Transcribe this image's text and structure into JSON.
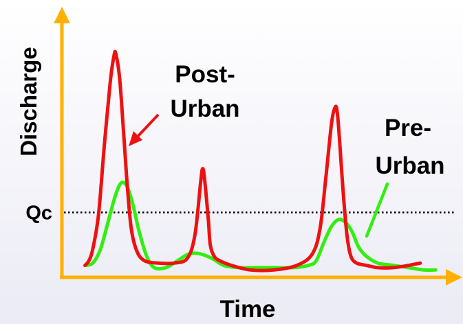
{
  "chart_data": {
    "type": "line",
    "title": "",
    "xlabel": "Time",
    "ylabel": "Discharge",
    "reference_line": {
      "label": "Qc",
      "y": 0.27
    },
    "annotations": [
      {
        "lines": [
          "Post-",
          "Urban"
        ],
        "series": "post_urban"
      },
      {
        "lines": [
          "Pre-",
          "Urban"
        ],
        "series": "pre_urban"
      }
    ],
    "xlim": [
      0,
      1
    ],
    "ylim": [
      0,
      1
    ],
    "grid": false,
    "legend": "none",
    "series": [
      {
        "id": "post_urban",
        "color": "#ee1111",
        "x": [
          0.06,
          0.07,
          0.08,
          0.095,
          0.11,
          0.125,
          0.135,
          0.14,
          0.15,
          0.16,
          0.17,
          0.18,
          0.195,
          0.215,
          0.25,
          0.29,
          0.325,
          0.345,
          0.36,
          0.365,
          0.37,
          0.38,
          0.385,
          0.395,
          0.41,
          0.44,
          0.49,
          0.55,
          0.61,
          0.65,
          0.67,
          0.685,
          0.7,
          0.71,
          0.715,
          0.72,
          0.73,
          0.74,
          0.75,
          0.765,
          0.79,
          0.82,
          0.86,
          0.9,
          0.93
        ],
        "y": [
          0.04,
          0.06,
          0.11,
          0.26,
          0.56,
          0.83,
          0.95,
          0.96,
          0.85,
          0.62,
          0.38,
          0.2,
          0.1,
          0.06,
          0.05,
          0.05,
          0.07,
          0.17,
          0.4,
          0.46,
          0.42,
          0.24,
          0.13,
          0.08,
          0.06,
          0.04,
          0.02,
          0.02,
          0.04,
          0.09,
          0.2,
          0.42,
          0.66,
          0.73,
          0.7,
          0.6,
          0.36,
          0.17,
          0.08,
          0.05,
          0.04,
          0.03,
          0.03,
          0.04,
          0.05
        ]
      },
      {
        "id": "pre_urban",
        "color": "#33ee11",
        "x": [
          0.06,
          0.08,
          0.1,
          0.12,
          0.14,
          0.155,
          0.17,
          0.185,
          0.2,
          0.22,
          0.24,
          0.27,
          0.3,
          0.33,
          0.36,
          0.39,
          0.42,
          0.46,
          0.5,
          0.55,
          0.6,
          0.64,
          0.66,
          0.68,
          0.7,
          0.72,
          0.74,
          0.755,
          0.77,
          0.79,
          0.82,
          0.86,
          0.9,
          0.94,
          0.97
        ],
        "y": [
          0.04,
          0.05,
          0.11,
          0.23,
          0.35,
          0.4,
          0.38,
          0.3,
          0.19,
          0.08,
          0.03,
          0.03,
          0.06,
          0.09,
          0.09,
          0.07,
          0.04,
          0.03,
          0.03,
          0.03,
          0.03,
          0.04,
          0.06,
          0.14,
          0.21,
          0.24,
          0.22,
          0.18,
          0.12,
          0.08,
          0.05,
          0.04,
          0.03,
          0.02,
          0.02
        ]
      }
    ]
  }
}
